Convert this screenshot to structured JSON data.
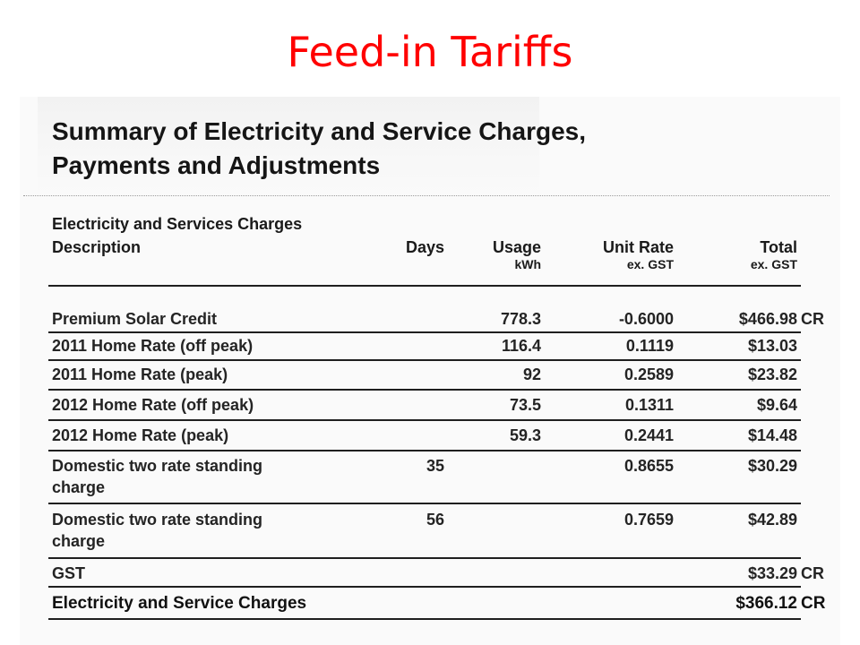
{
  "slide": {
    "title": "Feed-in Tariffs"
  },
  "document": {
    "heading_line1": "Summary of Electricity and Service Charges,",
    "heading_line2": "Payments and Adjustments",
    "section": "Electricity and Services Charges",
    "columns": {
      "description": "Description",
      "days": "Days",
      "usage": "Usage",
      "usage_unit": "kWh",
      "unit_rate": "Unit Rate",
      "unit_rate_sub": "ex. GST",
      "total": "Total",
      "total_sub": "ex. GST"
    },
    "rows": [
      {
        "description": "Premium Solar Credit",
        "days": "",
        "usage": "778.3",
        "unit_rate": "-0.6000",
        "total": "$466.98",
        "suffix": "CR"
      },
      {
        "description": "2011 Home Rate (off peak)",
        "days": "",
        "usage": "116.4",
        "unit_rate": "0.1119",
        "total": "$13.03",
        "suffix": ""
      },
      {
        "description": "2011 Home Rate (peak)",
        "days": "",
        "usage": "92",
        "unit_rate": "0.2589",
        "total": "$23.82",
        "suffix": ""
      },
      {
        "description": "2012 Home Rate (off peak)",
        "days": "",
        "usage": "73.5",
        "unit_rate": "0.1311",
        "total": "$9.64",
        "suffix": ""
      },
      {
        "description": "2012 Home Rate (peak)",
        "days": "",
        "usage": "59.3",
        "unit_rate": "0.2441",
        "total": "$14.48",
        "suffix": ""
      },
      {
        "description": "Domestic two rate standing",
        "description_2": "charge",
        "days": "35",
        "usage": "",
        "unit_rate": "0.8655",
        "total": "$30.29",
        "suffix": ""
      },
      {
        "description": "Domestic two rate standing",
        "description_2": "charge",
        "days": "56",
        "usage": "",
        "unit_rate": "0.7659",
        "total": "$42.89",
        "suffix": ""
      },
      {
        "description": "GST",
        "days": "",
        "usage": "",
        "unit_rate": "",
        "total": "$33.29",
        "suffix": "CR"
      }
    ],
    "total_row": {
      "description": "Electricity and Service Charges",
      "total": "$366.12",
      "suffix": "CR"
    }
  }
}
